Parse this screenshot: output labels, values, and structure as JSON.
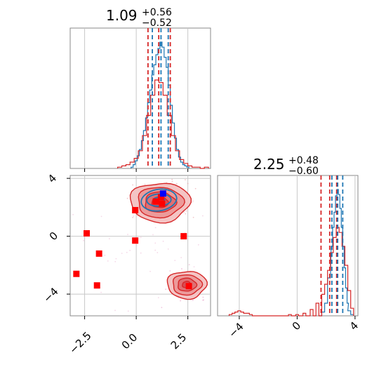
{
  "chart_data": [
    {
      "panel": "marginal-x",
      "type": "histogram",
      "title": {
        "value": "1.09",
        "plus": "+0.56",
        "minus": "−0.52"
      },
      "xlim": [
        -3.2,
        3.6
      ],
      "series": [
        {
          "name": "",
          "color": "#1f77b4",
          "bins_x": [
            -0.2,
            -0.1,
            0.0,
            0.1,
            0.2,
            0.3,
            0.4,
            0.5,
            0.6,
            0.7,
            0.8,
            0.9,
            1.0,
            1.1,
            1.2,
            1.3,
            1.4,
            1.5,
            1.6,
            1.7,
            1.8,
            1.9,
            2.0,
            2.1,
            2.2,
            2.3,
            2.4,
            2.5
          ],
          "values": [
            0.01,
            0.03,
            0.06,
            0.1,
            0.15,
            0.22,
            0.3,
            0.4,
            0.52,
            0.62,
            0.74,
            0.82,
            0.9,
            0.95,
            1.0,
            0.96,
            0.88,
            0.8,
            0.66,
            0.5,
            0.36,
            0.24,
            0.15,
            0.09,
            0.05,
            0.03,
            0.02,
            0.01
          ]
        },
        {
          "name": "",
          "color": "#d62728",
          "bins_x": [
            -0.8,
            -0.6,
            -0.4,
            -0.2,
            0.0,
            0.2,
            0.4,
            0.6,
            0.8,
            1.0,
            1.2,
            1.4,
            1.6,
            1.8,
            2.0,
            2.2,
            2.4,
            2.6,
            2.8,
            3.0,
            3.2,
            3.4
          ],
          "values": [
            0.01,
            0.02,
            0.03,
            0.05,
            0.08,
            0.14,
            0.26,
            0.42,
            0.58,
            0.7,
            0.68,
            0.58,
            0.42,
            0.26,
            0.14,
            0.07,
            0.04,
            0.02,
            0.01,
            0.01,
            0.0,
            0.01
          ]
        }
      ],
      "quantile_lines": [
        {
          "color": "#d62728",
          "values": [
            0.57,
            1.09,
            1.65
          ]
        },
        {
          "color": "#1f77b4",
          "values": [
            0.78,
            1.2,
            1.55
          ]
        }
      ]
    },
    {
      "panel": "joint",
      "type": "scatter",
      "xlim": [
        -3.2,
        3.6
      ],
      "ylim": [
        -5.5,
        4.2
      ],
      "xticks": [
        "−2.5",
        "0.0",
        "2.5"
      ],
      "xtick_values": [
        -2.5,
        0.0,
        2.5
      ],
      "yticks": [
        "−4",
        "0",
        "4"
      ],
      "ytick_values": [
        -4,
        0,
        4
      ],
      "red_markers": [
        {
          "x": -2.4,
          "y": 0.2
        },
        {
          "x": -1.8,
          "y": -1.2
        },
        {
          "x": -2.9,
          "y": -2.6
        },
        {
          "x": -1.9,
          "y": -3.4
        },
        {
          "x": -0.05,
          "y": 1.8
        },
        {
          "x": -0.05,
          "y": -0.3
        },
        {
          "x": 2.3,
          "y": 0.0
        },
        {
          "x": 1.2,
          "y": 2.7
        },
        {
          "x": 0.95,
          "y": 2.4
        },
        {
          "x": 1.25,
          "y": 2.25
        },
        {
          "x": 2.55,
          "y": -3.45
        }
      ],
      "blue_markers": [
        {
          "x": 1.3,
          "y": 2.95
        }
      ],
      "red_contours": [
        {
          "cx": 1.15,
          "cy": 2.35,
          "levels": [
            [
              1.45,
              1.35
            ],
            [
              1.1,
              1.05
            ],
            [
              0.75,
              0.7
            ],
            [
              0.4,
              0.38
            ]
          ]
        },
        {
          "cx": 2.45,
          "cy": -3.35,
          "levels": [
            [
              0.95,
              0.95
            ],
            [
              0.7,
              0.7
            ],
            [
              0.45,
              0.45
            ],
            [
              0.22,
              0.22
            ]
          ]
        }
      ],
      "blue_contours": [
        {
          "cx": 1.1,
          "cy": 2.5,
          "levels": [
            [
              0.85,
              0.75
            ],
            [
              0.55,
              0.45
            ],
            [
              0.25,
              0.2
            ]
          ]
        }
      ]
    },
    {
      "panel": "marginal-y",
      "type": "histogram",
      "title": {
        "value": "2.25",
        "plus": "+0.48",
        "minus": "−0.60"
      },
      "xlim": [
        -5.5,
        4.2
      ],
      "xticks": [
        "−4",
        "0",
        "4"
      ],
      "xtick_values": [
        -4,
        0,
        4
      ],
      "series": [
        {
          "name": "",
          "color": "#1f77b4",
          "bins_x": [
            1.6,
            1.8,
            2.0,
            2.2,
            2.4,
            2.5,
            2.6,
            2.7,
            2.8,
            2.9,
            3.0,
            3.1,
            3.2,
            3.3,
            3.4,
            3.5,
            3.6,
            3.8
          ],
          "values": [
            0.0,
            0.03,
            0.1,
            0.3,
            0.55,
            0.7,
            0.82,
            0.95,
            1.0,
            0.96,
            0.85,
            0.7,
            0.55,
            0.38,
            0.22,
            0.1,
            0.04,
            0.01
          ]
        },
        {
          "name": "",
          "color": "#d62728",
          "bins_x": [
            -4.6,
            -4.4,
            -4.2,
            -4.0,
            -3.8,
            -3.6,
            -3.4,
            -3.2,
            -1.0,
            -0.5,
            0.0,
            0.5,
            1.0,
            1.4,
            1.8,
            2.0,
            2.2,
            2.4,
            2.6,
            2.8,
            3.0,
            3.2,
            3.4,
            3.6,
            3.8
          ],
          "values": [
            0.01,
            0.02,
            0.03,
            0.04,
            0.03,
            0.02,
            0.02,
            0.01,
            0.0,
            0.01,
            0.01,
            0.02,
            0.05,
            0.1,
            0.17,
            0.25,
            0.36,
            0.5,
            0.62,
            0.7,
            0.66,
            0.55,
            0.4,
            0.2,
            0.06
          ]
        }
      ],
      "quantile_lines": [
        {
          "color": "#d62728",
          "values": [
            1.65,
            2.25,
            2.73
          ]
        },
        {
          "color": "#1f77b4",
          "values": [
            2.4,
            2.8,
            3.15
          ]
        }
      ]
    }
  ]
}
